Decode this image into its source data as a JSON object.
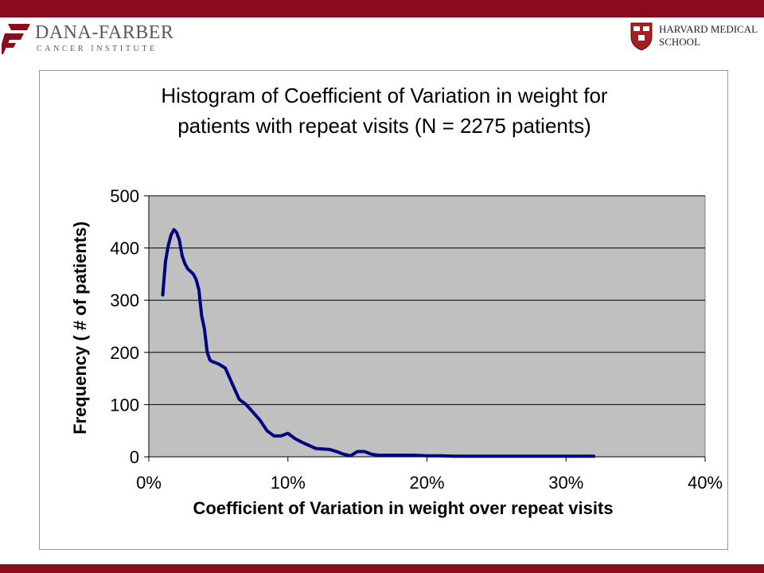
{
  "colors": {
    "brand_bar": "#8a0b1b",
    "plot_bg": "#c0c0c0",
    "line": "#000080",
    "grid": "#000000"
  },
  "header": {
    "left_logo": {
      "name": "DANA-FARBER",
      "subtitle": "CANCER INSTITUTE",
      "icon": "dfci-f-icon"
    },
    "right_logo": {
      "line1": "HARVARD MEDICAL",
      "line2": "SCHOOL",
      "icon": "veritas-shield-icon"
    }
  },
  "chart_data": {
    "type": "line",
    "title_lines": [
      "Histogram of Coefficient of Variation in weight for",
      "patients with repeat visits (N = 2275 patients)"
    ],
    "xlabel": "Coefficient of Variation in weight over repeat visits",
    "ylabel": "Frequency ( # of patients)",
    "x_ticks": [
      "0%",
      "10%",
      "20%",
      "30%",
      "40%"
    ],
    "y_ticks": [
      "0",
      "100",
      "200",
      "300",
      "400",
      "500"
    ],
    "xlim": [
      0,
      0.4
    ],
    "ylim": [
      0,
      500
    ],
    "grid": true,
    "legend": "none",
    "series": [
      {
        "x": [
          0.01,
          0.012,
          0.014,
          0.016,
          0.018,
          0.02,
          0.022,
          0.024,
          0.026,
          0.028,
          0.03,
          0.032,
          0.034,
          0.036,
          0.038,
          0.04,
          0.042,
          0.044,
          0.046,
          0.048,
          0.05,
          0.055,
          0.06,
          0.065,
          0.07,
          0.075,
          0.08,
          0.085,
          0.09,
          0.095,
          0.1,
          0.105,
          0.11,
          0.115,
          0.12,
          0.125,
          0.13,
          0.135,
          0.14,
          0.145,
          0.15,
          0.155,
          0.16,
          0.165,
          0.17,
          0.175,
          0.18,
          0.19,
          0.2,
          0.21,
          0.22,
          0.23,
          0.24,
          0.25,
          0.26,
          0.27,
          0.28,
          0.29,
          0.3,
          0.31,
          0.32
        ],
        "y": [
          310,
          375,
          405,
          425,
          435,
          430,
          415,
          385,
          370,
          360,
          355,
          350,
          340,
          320,
          270,
          245,
          200,
          185,
          182,
          180,
          178,
          170,
          140,
          110,
          100,
          85,
          70,
          50,
          40,
          40,
          45,
          35,
          28,
          22,
          16,
          15,
          14,
          10,
          5,
          2,
          10,
          10,
          5,
          3,
          3,
          3,
          3,
          3,
          2,
          2,
          1,
          1,
          1,
          1,
          1,
          1,
          1,
          1,
          1,
          1,
          1
        ]
      }
    ]
  }
}
